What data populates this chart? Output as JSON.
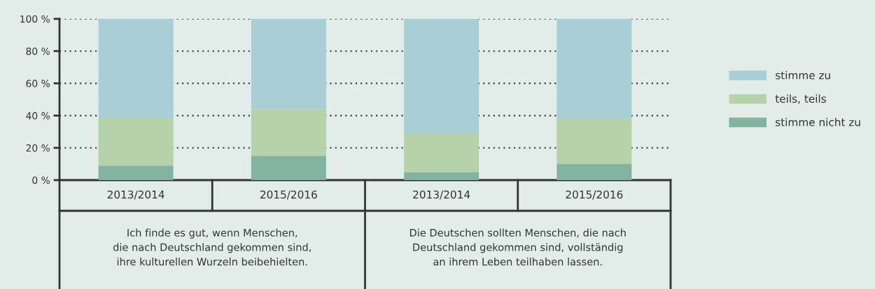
{
  "chart_data": {
    "type": "bar",
    "stacked": true,
    "categories": [
      "2013/2014",
      "2015/2016",
      "2013/2014",
      "2015/2016"
    ],
    "series": [
      {
        "name": "stimme nicht zu",
        "color": "#82b2a0",
        "values": [
          9,
          15,
          5,
          10
        ]
      },
      {
        "name": "teils, teils",
        "color": "#b6d2aa",
        "values": [
          30,
          29,
          24,
          28
        ]
      },
      {
        "name": "stimme zu",
        "color": "#a8cfd6",
        "values": [
          61,
          56,
          71,
          62
        ]
      }
    ],
    "ylim": [
      0,
      100
    ],
    "yticks": [
      {
        "value": 0,
        "label": "0 %"
      },
      {
        "value": 20,
        "label": "20 %"
      },
      {
        "value": 40,
        "label": "40 %"
      },
      {
        "value": 60,
        "label": "60 %"
      },
      {
        "value": 80,
        "label": "80 %"
      },
      {
        "value": 100,
        "label": "100 %"
      }
    ],
    "grid": "y",
    "legend": "right",
    "annotations": [
      "Ich finde es gut, wenn Menschen,\ndie nach Deutschland gekommen sind,\nihre kulturellen Wurzeln beibehielten.",
      "Die Deutschen sollten Menschen, die nach\nDeutschland gekommen sind, vollständig\nan ihrem Leben teilhaben lassen."
    ]
  }
}
